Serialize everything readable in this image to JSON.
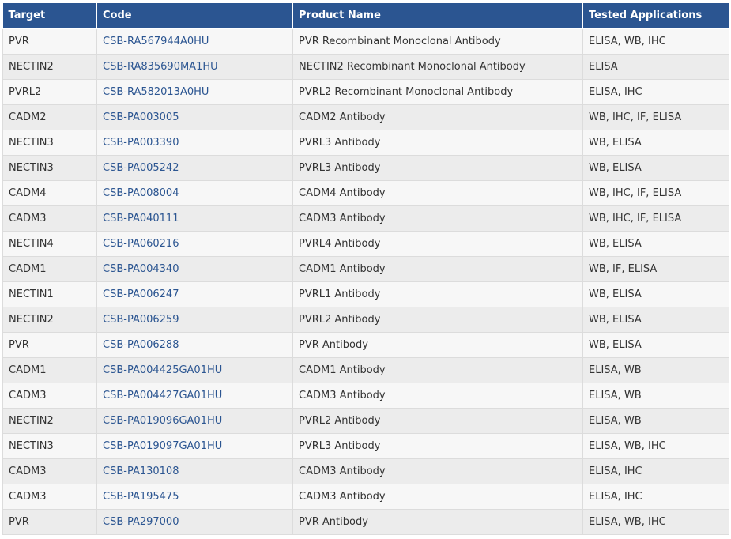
{
  "table": {
    "headers": [
      "Target",
      "Code",
      "Product Name",
      "Tested Applications"
    ],
    "rows": [
      {
        "target": "PVR",
        "code": "CSB-RA567944A0HU",
        "product": "PVR Recombinant Monoclonal Antibody",
        "apps": "ELISA, WB, IHC"
      },
      {
        "target": "NECTIN2",
        "code": "CSB-RA835690MA1HU",
        "product": "NECTIN2 Recombinant Monoclonal Antibody",
        "apps": "ELISA"
      },
      {
        "target": "PVRL2",
        "code": "CSB-RA582013A0HU",
        "product": "PVRL2 Recombinant Monoclonal Antibody",
        "apps": "ELISA, IHC"
      },
      {
        "target": "CADM2",
        "code": "CSB-PA003005",
        "product": "CADM2 Antibody",
        "apps": "WB, IHC, IF, ELISA"
      },
      {
        "target": "NECTIN3",
        "code": "CSB-PA003390",
        "product": "PVRL3 Antibody",
        "apps": "WB, ELISA"
      },
      {
        "target": "NECTIN3",
        "code": "CSB-PA005242",
        "product": "PVRL3 Antibody",
        "apps": "WB, ELISA"
      },
      {
        "target": "CADM4",
        "code": "CSB-PA008004",
        "product": "CADM4 Antibody",
        "apps": "WB, IHC, IF, ELISA"
      },
      {
        "target": "CADM3",
        "code": "CSB-PA040111",
        "product": "CADM3 Antibody",
        "apps": "WB, IHC, IF, ELISA"
      },
      {
        "target": "NECTIN4",
        "code": "CSB-PA060216",
        "product": "PVRL4 Antibody",
        "apps": "WB, ELISA"
      },
      {
        "target": "CADM1",
        "code": "CSB-PA004340",
        "product": "CADM1 Antibody",
        "apps": "WB, IF, ELISA"
      },
      {
        "target": "NECTIN1",
        "code": "CSB-PA006247",
        "product": "PVRL1 Antibody",
        "apps": "WB, ELISA"
      },
      {
        "target": "NECTIN2",
        "code": "CSB-PA006259",
        "product": "PVRL2 Antibody",
        "apps": "WB, ELISA"
      },
      {
        "target": "PVR",
        "code": "CSB-PA006288",
        "product": "PVR Antibody",
        "apps": "WB, ELISA"
      },
      {
        "target": "CADM1",
        "code": "CSB-PA004425GA01HU",
        "product": "CADM1 Antibody",
        "apps": "ELISA, WB"
      },
      {
        "target": "CADM3",
        "code": "CSB-PA004427GA01HU",
        "product": "CADM3 Antibody",
        "apps": "ELISA, WB"
      },
      {
        "target": "NECTIN2",
        "code": "CSB-PA019096GA01HU",
        "product": "PVRL2 Antibody",
        "apps": "ELISA, WB"
      },
      {
        "target": "NECTIN3",
        "code": "CSB-PA019097GA01HU",
        "product": "PVRL3 Antibody",
        "apps": "ELISA, WB, IHC"
      },
      {
        "target": "CADM3",
        "code": "CSB-PA130108",
        "product": "CADM3 Antibody",
        "apps": "ELISA, IHC"
      },
      {
        "target": "CADM3",
        "code": "CSB-PA195475",
        "product": "CADM3 Antibody",
        "apps": "ELISA, IHC"
      },
      {
        "target": "PVR",
        "code": "CSB-PA297000",
        "product": "PVR Antibody",
        "apps": "ELISA, WB, IHC"
      }
    ]
  },
  "colors": {
    "header_bg": "#2b5591",
    "header_text": "#ffffff",
    "link": "#2b5591",
    "row_odd": "#f7f7f7",
    "row_even": "#ececec",
    "text": "#333333"
  }
}
